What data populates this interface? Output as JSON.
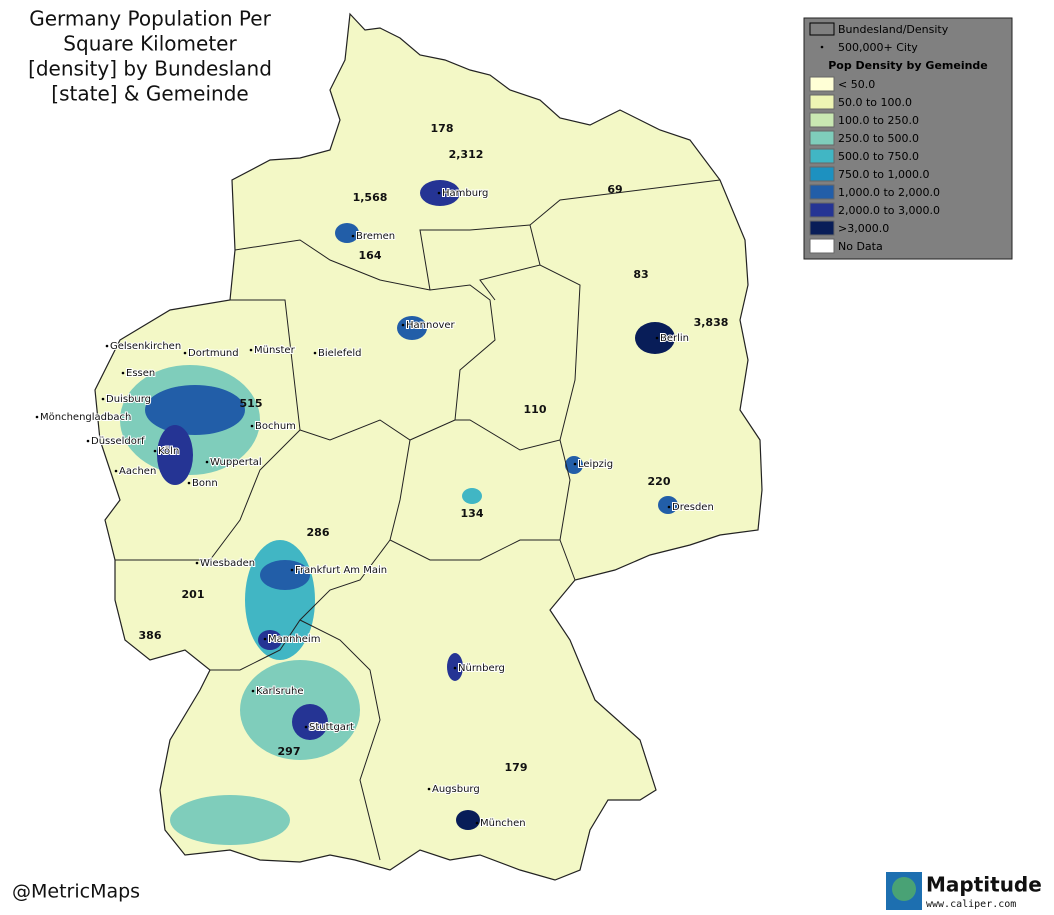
{
  "title_lines": [
    "Germany Population Per",
    "Square Kilometer",
    "[density] by Bundesland",
    "[state] & Gemeinde"
  ],
  "legend": {
    "boundary": "Bundesland/Density",
    "city": "500,000+ City",
    "heading": "Pop Density by Gemeinde",
    "classes": [
      {
        "label": "< 50.0",
        "color": "#ffffd6"
      },
      {
        "label": "50.0 to 100.0",
        "color": "#eef5b4"
      },
      {
        "label": "100.0 to 250.0",
        "color": "#c9e8b2"
      },
      {
        "label": "250.0 to 500.0",
        "color": "#7fcdbb"
      },
      {
        "label": "500.0 to 750.0",
        "color": "#41b6c4"
      },
      {
        "label": "750.0 to 1,000.0",
        "color": "#1d91c0"
      },
      {
        "label": "1,000.0 to 2,000.0",
        "color": "#225ea8"
      },
      {
        "label": "2,000.0 to 3,000.0",
        "color": "#253494"
      },
      {
        "label": ">3,000.0",
        "color": "#081d58"
      },
      {
        "label": "No Data",
        "color": "#ffffff"
      }
    ]
  },
  "states": [
    "178",
    "2,312",
    "69",
    "1,568",
    "164",
    "83",
    "3,838",
    "515",
    "110",
    "220",
    "134",
    "286",
    "201",
    "386",
    "297",
    "179"
  ],
  "cities": [
    "Hamburg",
    "Bremen",
    "Hannover",
    "Berlin",
    "Münster",
    "Bielefeld",
    "Dortmund",
    "Gelsenkirchen",
    "Essen",
    "Duisburg",
    "Mönchengladbach",
    "Düsseldorf",
    "Bochum",
    "Köln",
    "Aachen",
    "Wuppertal",
    "Bonn",
    "Leipzig",
    "Dresden",
    "Wiesbaden",
    "Frankfurt Am Main",
    "Mannheim",
    "Nürnberg",
    "Karlsruhe",
    "Stuttgart",
    "Augsburg",
    "München"
  ],
  "credit": "@MetricMaps",
  "logo": {
    "name": "Maptitude",
    "url": "www.caliper.com"
  }
}
